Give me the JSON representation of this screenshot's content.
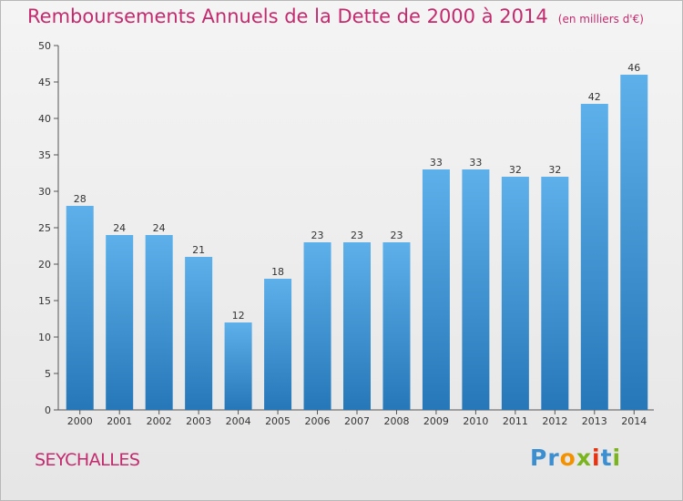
{
  "title": "Remboursements Annuels de la Dette de 2000 à 2014",
  "subtitle": "(en milliers d'€)",
  "town": "SEYCHALLES",
  "logo": {
    "letters": [
      "P",
      "r",
      "o",
      "x",
      "i",
      "t",
      "i"
    ],
    "colors": [
      "#3b8fd0",
      "#3b8fd0",
      "#f39200",
      "#7ab51d",
      "#e63312",
      "#3b8fd0",
      "#7ab51d"
    ]
  },
  "colors": {
    "bar_top": "#5db0ea",
    "bar_bottom": "#2677b8",
    "title": "#c42a6e"
  },
  "chart_data": {
    "type": "bar",
    "categories": [
      "2000",
      "2001",
      "2002",
      "2003",
      "2004",
      "2005",
      "2006",
      "2007",
      "2008",
      "2009",
      "2010",
      "2011",
      "2012",
      "2013",
      "2014"
    ],
    "values": [
      28,
      24,
      24,
      21,
      12,
      18,
      23,
      23,
      23,
      33,
      33,
      32,
      32,
      42,
      46
    ],
    "yticks": [
      "0",
      "5",
      "10",
      "15",
      "20",
      "25",
      "30",
      "35",
      "40",
      "45",
      "50"
    ],
    "ylim": [
      0,
      50
    ],
    "xlabel": "",
    "ylabel": "",
    "grid": false
  }
}
